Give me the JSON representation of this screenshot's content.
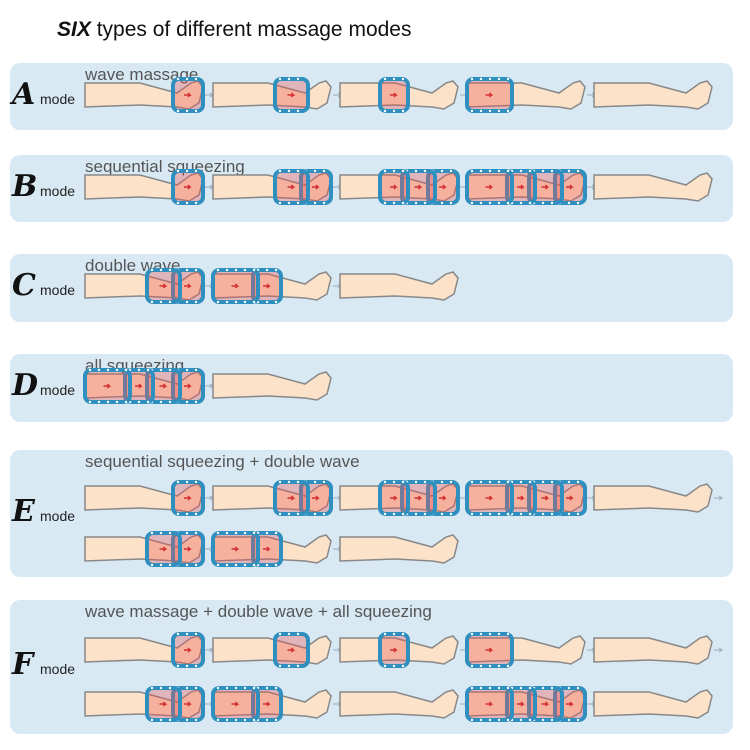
{
  "title": {
    "emphasis": "SIX",
    "rest": " types of different massage modes"
  },
  "colors": {
    "panel": "#d8e9f4",
    "skin": "#fbe2c8",
    "cuff": "#2f8fbf",
    "pressure": "#ef5350"
  },
  "modes": [
    {
      "letter": "A",
      "mode": "mode",
      "caption": "wave massage",
      "rows": [
        [
          [
            "foot"
          ],
          [
            "calf"
          ],
          [
            "knee"
          ],
          [
            "thigh"
          ],
          []
        ]
      ]
    },
    {
      "letter": "B",
      "mode": "mode",
      "caption": "sequential squeezing",
      "rows": [
        [
          [
            "foot"
          ],
          [
            "foot",
            "calf"
          ],
          [
            "foot",
            "calf",
            "knee"
          ],
          [
            "foot",
            "calf",
            "knee",
            "thigh"
          ],
          []
        ]
      ]
    },
    {
      "letter": "C",
      "mode": "mode",
      "caption": "double wave",
      "rows": [
        [
          [
            "foot",
            "calf"
          ],
          [
            "knee",
            "thigh"
          ],
          []
        ]
      ]
    },
    {
      "letter": "D",
      "mode": "mode",
      "caption": "all squeezing",
      "rows": [
        [
          [
            "foot",
            "calf",
            "knee",
            "thigh"
          ],
          []
        ]
      ]
    },
    {
      "letter": "E",
      "mode": "mode",
      "caption": "sequential squeezing + double wave",
      "rows": [
        [
          [
            "foot"
          ],
          [
            "foot",
            "calf"
          ],
          [
            "foot",
            "calf",
            "knee"
          ],
          [
            "foot",
            "calf",
            "knee",
            "thigh"
          ],
          []
        ],
        [
          [
            "foot",
            "calf"
          ],
          [
            "knee",
            "thigh"
          ],
          []
        ]
      ]
    },
    {
      "letter": "F",
      "mode": "mode",
      "caption": "wave massage + double wave + all squeezing",
      "rows": [
        [
          [
            "foot"
          ],
          [
            "calf"
          ],
          [
            "knee"
          ],
          [
            "thigh"
          ],
          []
        ],
        [
          [
            "foot",
            "calf"
          ],
          [
            "knee",
            "thigh"
          ],
          [],
          [
            "foot",
            "calf",
            "knee",
            "thigh"
          ],
          []
        ]
      ]
    }
  ]
}
